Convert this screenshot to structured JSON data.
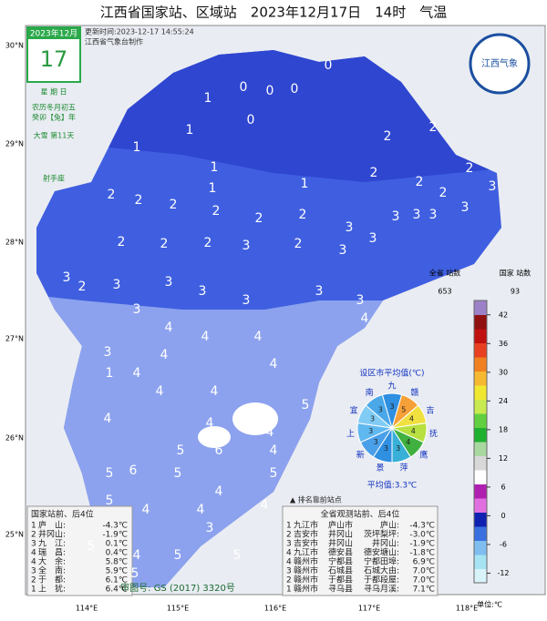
{
  "title": "江西省国家站、区域站　2023年12月17日　14时　气温",
  "calendar": {
    "month": "2023年12月",
    "day": "17",
    "weekday": "星 期 日",
    "lunar": "农历冬月初五",
    "year": "癸卯【兔】年",
    "term": "大雪 第11天",
    "zodiac": "射手座"
  },
  "update": "更新时间:2023-12-17 14:55:24",
  "maker": "江西省气象台制作",
  "logo": "江西气象",
  "lat_labels": [
    "30°N",
    "29°N",
    "28°N",
    "27°N",
    "26°N",
    "25°N"
  ],
  "lon_labels": [
    "114°E",
    "115°E",
    "116°E",
    "117°E",
    "118°E"
  ],
  "map": {
    "station_values": [
      0,
      0,
      0,
      0,
      0,
      1,
      1,
      1,
      1,
      1,
      1,
      2,
      2,
      2,
      2,
      2,
      2,
      3,
      2,
      2,
      2,
      2,
      2,
      2,
      3,
      3,
      3,
      3,
      2,
      2,
      2,
      3,
      2,
      3,
      3,
      3,
      3,
      2,
      3,
      3,
      3,
      3,
      3,
      3,
      4,
      3,
      4,
      4,
      4,
      4,
      3,
      1,
      4,
      4,
      4,
      4,
      5,
      4,
      4,
      4,
      5,
      6,
      4,
      5,
      6,
      5,
      4,
      5,
      5,
      4,
      4,
      4,
      3,
      5,
      4,
      5,
      5,
      5
    ]
  },
  "legend": {
    "all_label": "全省\n站数",
    "all_count": "653",
    "national_label": "国家\n站数",
    "national_count": "93",
    "unit": "单位:℃",
    "lim": [
      -14,
      45
    ],
    "ticks": [
      42,
      36,
      30,
      24,
      18,
      12,
      6,
      0,
      -6,
      -12
    ],
    "colors": [
      "#d9f3fb",
      "#a6e3f3",
      "#7fbdf0",
      "#3a6fe0",
      "#1020b0",
      "#e070e0",
      "#b020b0",
      "#ffffff",
      "#d8d8d8",
      "#a8d8a0",
      "#20b030",
      "#60d040",
      "#c8ea50",
      "#f0e830",
      "#f5b830",
      "#f08020",
      "#e84020",
      "#c01010",
      "#901010",
      "#9c80c8"
    ]
  },
  "pie": {
    "title": "设区市平均值(℃)",
    "average": "平均值:3.3℃",
    "cities": [
      {
        "name": "九",
        "value": 3,
        "color": "#2f8fe0"
      },
      {
        "name": "赣",
        "value": 5,
        "color": "#f5a038"
      },
      {
        "name": "吉",
        "value": 4,
        "color": "#f0e040"
      },
      {
        "name": "抚",
        "value": 4,
        "color": "#b8e040"
      },
      {
        "name": "鹰",
        "value": 4,
        "color": "#40b040"
      },
      {
        "name": "萍",
        "value": 3,
        "color": "#38b0d8"
      },
      {
        "name": "景",
        "value": 3,
        "color": "#2f8fe0"
      },
      {
        "name": "新",
        "value": 3,
        "color": "#4aa0e8"
      },
      {
        "name": "上",
        "value": 3,
        "color": "#60b8f0"
      },
      {
        "name": "宜",
        "value": 3,
        "color": "#80ccf4"
      },
      {
        "name": "南",
        "value": 3,
        "color": "#4aa8e8"
      }
    ]
  },
  "rank_mark": "▲ 排名靠前站点",
  "national_table": {
    "title": "国家站前、后4位",
    "rows": [
      [
        "1",
        "庐　山:",
        "-4.3℃"
      ],
      [
        "2",
        "井冈山:",
        "-1.9℃"
      ],
      [
        "3",
        "九　江:",
        "0.1℃"
      ],
      [
        "4",
        "瑞　昌:",
        "0.4℃"
      ],
      [
        "4",
        "大　余:",
        "5.8℃"
      ],
      [
        "3",
        "全　南:",
        "5.9℃"
      ],
      [
        "2",
        "于　都:",
        "6.1℃"
      ],
      [
        "1",
        "上　犹:",
        "6.4℃"
      ]
    ]
  },
  "all_table": {
    "title": "全省观测站前、后4位",
    "rows": [
      [
        "1",
        "九江市",
        "庐山市",
        "庐山:",
        "-4.3℃"
      ],
      [
        "2",
        "吉安市",
        "井冈山",
        "茨坪梨坪:",
        "-3.0℃"
      ],
      [
        "3",
        "吉安市",
        "井冈山",
        "井冈山:",
        "-1.9℃"
      ],
      [
        "4",
        "九江市",
        "德安县",
        "德安塘山:",
        "-1.8℃"
      ],
      [
        "4",
        "赣州市",
        "宁都县",
        "宁都田埠:",
        "6.9℃"
      ],
      [
        "3",
        "赣州市",
        "石城县",
        "石城大由:",
        "7.0℃"
      ],
      [
        "2",
        "赣州市",
        "于都县",
        "于都段屋:",
        "7.0℃"
      ],
      [
        "1",
        "赣州市",
        "寻乌县",
        "寻乌月溪:",
        "7.1℃"
      ]
    ]
  },
  "approval": "审图号: GS (2017) 3320号"
}
